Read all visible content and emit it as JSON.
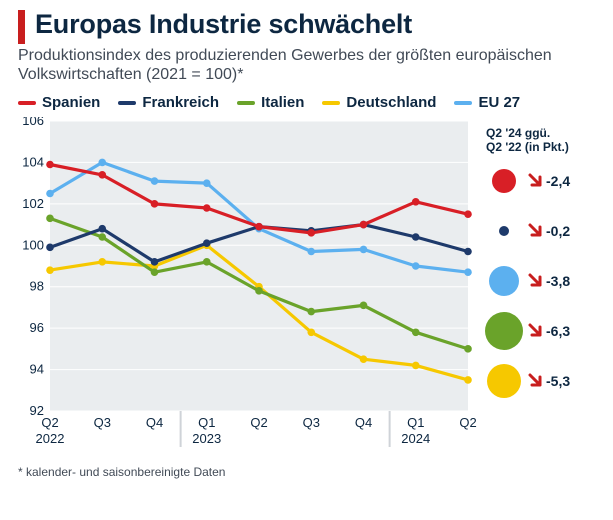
{
  "title": "Europas Industrie schwächelt",
  "subtitle": "Produktionsindex des produzierenden Gewerbes der größten europäischen Volkswirtschaften (2021 = 100)*",
  "footnote": "* kalender- und saisonbereinigte Daten",
  "colors": {
    "accent_bar": "#c81e1e",
    "title_text": "#0d2741",
    "subtitle_text": "#414a56",
    "plot_bg": "#eaedef",
    "grid": "#ffffff",
    "divider": "#cfd3d8",
    "down_arrow": "#c81e1e"
  },
  "legend": [
    {
      "name": "Spanien",
      "color": "#d81f26"
    },
    {
      "name": "Frankreich",
      "color": "#1e3a6b"
    },
    {
      "name": "Italien",
      "color": "#6aa32a"
    },
    {
      "name": "Deutschland",
      "color": "#f6c800"
    },
    {
      "name": "EU 27",
      "color": "#5cb0ef"
    }
  ],
  "chart": {
    "type": "line",
    "ylim": [
      92,
      106
    ],
    "ytick_step": 2,
    "categories": [
      "Q2",
      "Q3",
      "Q4",
      "Q1",
      "Q2",
      "Q3",
      "Q4",
      "Q1",
      "Q2"
    ],
    "year_groups": [
      {
        "label": "2022",
        "span": [
          0,
          2
        ]
      },
      {
        "label": "2023",
        "span": [
          3,
          6
        ]
      },
      {
        "label": "2024",
        "span": [
          7,
          8
        ]
      }
    ],
    "series": {
      "Spanien": [
        103.9,
        103.4,
        102.0,
        101.8,
        100.9,
        100.6,
        101.0,
        102.1,
        101.5
      ],
      "Frankreich": [
        99.9,
        100.8,
        99.2,
        100.1,
        100.9,
        100.7,
        101.0,
        100.4,
        99.7
      ],
      "Italien": [
        101.3,
        100.4,
        98.7,
        99.2,
        97.8,
        96.8,
        97.1,
        95.8,
        95.0
      ],
      "Deutschland": [
        98.8,
        99.2,
        99.0,
        100.0,
        98.0,
        95.8,
        94.5,
        94.2,
        93.5
      ],
      "EU 27": [
        102.5,
        104.0,
        103.1,
        103.0,
        100.8,
        99.7,
        99.8,
        99.0,
        98.7
      ]
    },
    "marker_radius": 3.8,
    "line_width": 3.2
  },
  "side_panel": {
    "heading": [
      "Q2 '24 ggü.",
      "Q2 '22 (in Pkt.)"
    ],
    "items": [
      {
        "name": "Spanien",
        "color": "#d81f26",
        "value": "-2,4",
        "bubble_r": 12
      },
      {
        "name": "Frankreich",
        "color": "#1e3a6b",
        "value": "-0,2",
        "bubble_r": 5
      },
      {
        "name": "EU 27",
        "color": "#5cb0ef",
        "value": "-3,8",
        "bubble_r": 15
      },
      {
        "name": "Italien",
        "color": "#6aa32a",
        "value": "-6,3",
        "bubble_r": 19
      },
      {
        "name": "Deutschland",
        "color": "#f6c800",
        "value": "-5,3",
        "bubble_r": 17
      }
    ]
  }
}
